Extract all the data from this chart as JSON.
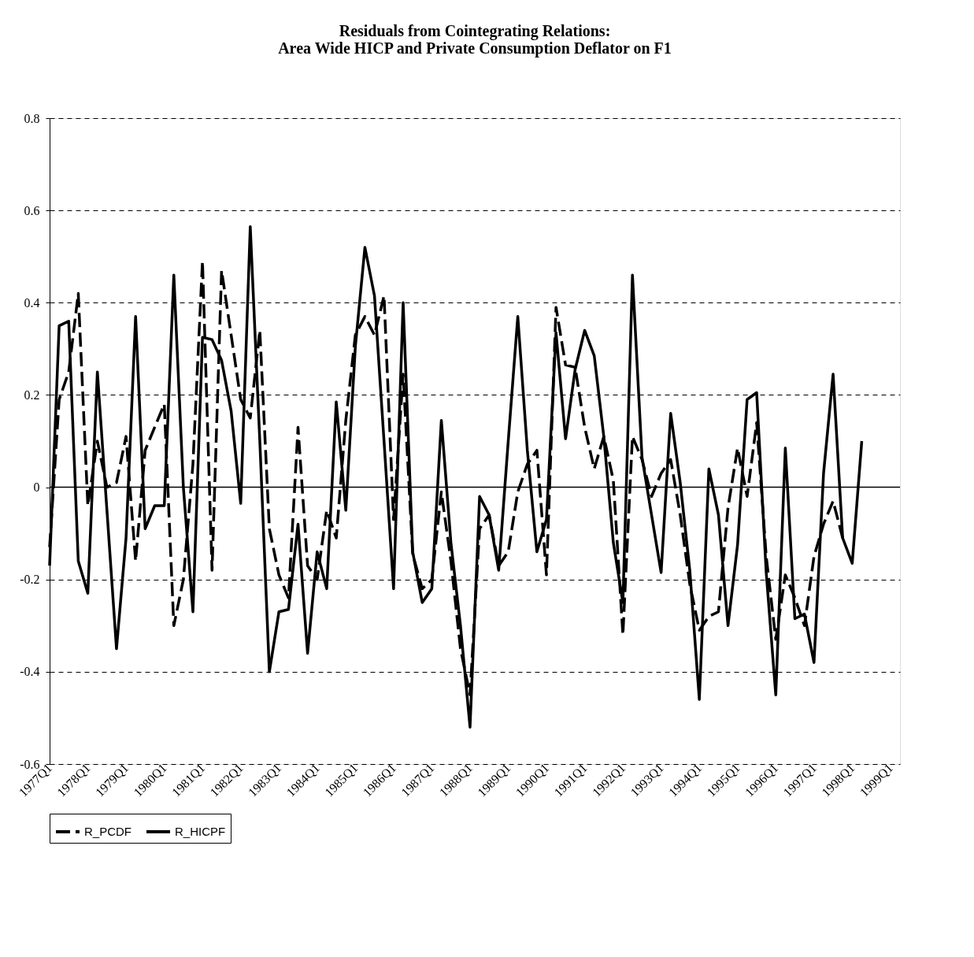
{
  "chart_data": {
    "type": "line",
    "title": [
      "Residuals from Cointegrating Relations:",
      "Area Wide HICP and Private Consumption Deflator on F1"
    ],
    "categories": [
      "1977Q1",
      null,
      null,
      null,
      "1978Q1",
      null,
      null,
      null,
      "1979Q1",
      null,
      null,
      null,
      "1980Q1",
      null,
      null,
      null,
      "1981Q1",
      null,
      null,
      null,
      "1982Q1",
      null,
      null,
      null,
      "1983Q1",
      null,
      null,
      null,
      "1984Q1",
      null,
      null,
      null,
      "1985Q1",
      null,
      null,
      null,
      "1986Q1",
      null,
      null,
      null,
      "1987Q1",
      null,
      null,
      null,
      "1988Q1",
      null,
      null,
      null,
      "1989Q1",
      null,
      null,
      null,
      "1990Q1",
      null,
      null,
      null,
      "1991Q1",
      null,
      null,
      null,
      "1992Q1",
      null,
      null,
      null,
      "1993Q1",
      null,
      null,
      null,
      "1994Q1",
      null,
      null,
      null,
      "1995Q1",
      null,
      null,
      null,
      "1996Q1",
      null,
      null,
      null,
      "1997Q1",
      null,
      null,
      null,
      "1998Q1",
      null,
      null,
      null,
      "1999Q1",
      null
    ],
    "series": [
      {
        "name": "R_PCDF",
        "color": "#000000",
        "line_style": "dashed",
        "values": [
          -0.13,
          0.19,
          0.25,
          0.42,
          -0.04,
          0.1,
          0.0,
          0.01,
          0.11,
          -0.16,
          0.08,
          0.13,
          0.18,
          -0.3,
          -0.2,
          0.05,
          0.49,
          -0.18,
          0.47,
          0.33,
          0.19,
          0.15,
          0.34,
          -0.09,
          -0.19,
          -0.24,
          0.13,
          -0.17,
          -0.2,
          -0.05,
          -0.11,
          0.145,
          0.33,
          0.37,
          0.33,
          0.415,
          -0.07,
          0.245,
          -0.145,
          -0.22,
          -0.2,
          -0.01,
          -0.16,
          -0.35,
          -0.45,
          -0.09,
          -0.06,
          -0.17,
          -0.14,
          -0.01,
          0.05,
          0.08,
          -0.19,
          0.39,
          0.265,
          0.26,
          0.13,
          0.04,
          0.11,
          0.015,
          -0.32,
          0.11,
          0.06,
          -0.02,
          0.03,
          0.06,
          -0.06,
          -0.21,
          -0.31,
          -0.28,
          -0.27,
          -0.045,
          0.085,
          -0.02,
          0.14,
          -0.15,
          -0.33,
          -0.19,
          -0.24,
          -0.3,
          -0.15,
          -0.08,
          -0.03,
          -0.11,
          null,
          null,
          null,
          null,
          null,
          null
        ]
      },
      {
        "name": "R_HICPF",
        "color": "#000000",
        "line_style": "solid",
        "values": [
          -0.17,
          0.35,
          0.36,
          -0.16,
          -0.23,
          0.25,
          -0.05,
          -0.35,
          -0.11,
          0.37,
          -0.09,
          -0.04,
          -0.04,
          0.46,
          0.0,
          -0.27,
          0.325,
          0.32,
          0.275,
          0.165,
          -0.035,
          0.565,
          0.1,
          -0.4,
          -0.27,
          -0.265,
          -0.08,
          -0.36,
          -0.14,
          -0.22,
          0.185,
          -0.05,
          0.305,
          0.52,
          0.415,
          0.1,
          -0.22,
          0.4,
          -0.14,
          -0.25,
          -0.22,
          0.145,
          -0.12,
          -0.3,
          -0.52,
          -0.02,
          -0.06,
          -0.18,
          0.1,
          0.37,
          0.08,
          -0.14,
          -0.07,
          0.335,
          0.105,
          0.255,
          0.34,
          0.285,
          0.11,
          -0.12,
          -0.25,
          0.46,
          0.065,
          -0.06,
          -0.185,
          0.16,
          0.01,
          -0.18,
          -0.46,
          0.04,
          -0.06,
          -0.3,
          -0.125,
          0.19,
          0.205,
          -0.185,
          -0.45,
          0.085,
          -0.285,
          -0.275,
          -0.38,
          0.03,
          0.245,
          -0.11,
          -0.165,
          0.1,
          null,
          null,
          null,
          null
        ]
      }
    ],
    "ylim": [
      -0.6,
      0.8
    ],
    "yticks": [
      -0.6,
      -0.4,
      -0.2,
      0,
      0.2,
      0.4,
      0.6,
      0.8
    ],
    "ref_lines": [
      {
        "axis": "y",
        "value": 0,
        "color": "#000000",
        "line_style": "solid"
      }
    ],
    "grid": "y",
    "legend": "bottom",
    "marker": "none"
  }
}
